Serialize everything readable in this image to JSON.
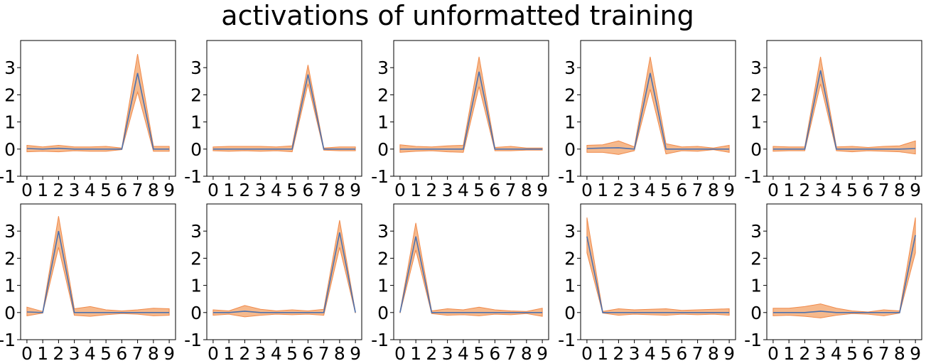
{
  "figure": {
    "title": "activations of unformatted training"
  },
  "colors": {
    "line": "#4c72b0",
    "band_fill": "#f6b98c",
    "band_edge": "#f08a4b",
    "axes": "#000000"
  },
  "chart_data": [
    {
      "type": "line",
      "title": "",
      "xlabel": "",
      "ylabel": "",
      "x": [
        0,
        1,
        2,
        3,
        4,
        5,
        6,
        7,
        8,
        9
      ],
      "xticks": [
        "0",
        "1",
        "2",
        "3",
        "4",
        "5",
        "6",
        "7",
        "8",
        "9"
      ],
      "yticks": [
        "-1",
        "0",
        "1",
        "2",
        "3"
      ],
      "ylim": [
        -1,
        4
      ],
      "legend": "none",
      "grid": false,
      "series": [
        {
          "values": [
            0.02,
            0.0,
            0.03,
            0.0,
            0.0,
            0.0,
            0.0,
            2.8,
            0.0,
            0.0
          ],
          "lower": [
            -0.1,
            -0.08,
            -0.1,
            -0.06,
            -0.08,
            -0.08,
            -0.02,
            2.1,
            -0.08,
            -0.08
          ],
          "upper": [
            0.14,
            0.08,
            0.14,
            0.08,
            0.08,
            0.1,
            0.04,
            3.5,
            0.1,
            0.1
          ]
        }
      ]
    },
    {
      "type": "line",
      "title": "",
      "xlabel": "",
      "ylabel": "",
      "x": [
        0,
        1,
        2,
        3,
        4,
        5,
        6,
        7,
        8,
        9
      ],
      "xticks": [
        "0",
        "1",
        "2",
        "3",
        "4",
        "5",
        "6",
        "7",
        "8",
        "9"
      ],
      "yticks": [
        "-1",
        "0",
        "1",
        "2",
        "3"
      ],
      "ylim": [
        -1,
        4
      ],
      "legend": "none",
      "grid": false,
      "series": [
        {
          "values": [
            0.0,
            0.0,
            0.0,
            0.0,
            0.0,
            0.0,
            2.75,
            0.0,
            0.0,
            0.0
          ],
          "lower": [
            -0.06,
            -0.08,
            -0.06,
            -0.08,
            -0.06,
            -0.1,
            2.4,
            -0.04,
            -0.06,
            -0.06
          ],
          "upper": [
            0.08,
            0.1,
            0.1,
            0.1,
            0.08,
            0.12,
            3.1,
            0.04,
            0.08,
            0.08
          ]
        }
      ]
    },
    {
      "type": "line",
      "title": "",
      "xlabel": "",
      "ylabel": "",
      "x": [
        0,
        1,
        2,
        3,
        4,
        5,
        6,
        7,
        8,
        9
      ],
      "xticks": [
        "0",
        "1",
        "2",
        "3",
        "4",
        "5",
        "6",
        "7",
        "8",
        "9"
      ],
      "yticks": [
        "-1",
        "0",
        "1",
        "2",
        "3"
      ],
      "ylim": [
        -1,
        4
      ],
      "legend": "none",
      "grid": false,
      "series": [
        {
          "values": [
            0.0,
            0.0,
            0.0,
            0.0,
            0.0,
            2.85,
            0.0,
            0.0,
            0.0,
            0.0
          ],
          "lower": [
            -0.12,
            -0.08,
            -0.06,
            -0.1,
            -0.12,
            2.3,
            -0.06,
            -0.06,
            -0.04,
            -0.04
          ],
          "upper": [
            0.16,
            0.1,
            0.08,
            0.12,
            0.14,
            3.4,
            0.06,
            0.1,
            0.04,
            0.04
          ]
        }
      ]
    },
    {
      "type": "line",
      "title": "",
      "xlabel": "",
      "ylabel": "",
      "x": [
        0,
        1,
        2,
        3,
        4,
        5,
        6,
        7,
        8,
        9
      ],
      "xticks": [
        "0",
        "1",
        "2",
        "3",
        "4",
        "5",
        "6",
        "7",
        "8",
        "9"
      ],
      "yticks": [
        "-1",
        "0",
        "1",
        "2",
        "3"
      ],
      "ylim": [
        -1,
        4
      ],
      "legend": "none",
      "grid": false,
      "series": [
        {
          "values": [
            0.02,
            0.04,
            0.05,
            0.0,
            2.8,
            0.0,
            0.0,
            0.0,
            0.0,
            0.0
          ],
          "lower": [
            -0.12,
            -0.12,
            -0.2,
            -0.06,
            2.2,
            -0.18,
            -0.06,
            -0.08,
            -0.02,
            -0.12
          ],
          "upper": [
            0.14,
            0.16,
            0.3,
            0.08,
            3.4,
            0.2,
            0.08,
            0.1,
            0.04,
            0.14
          ]
        }
      ]
    },
    {
      "type": "line",
      "title": "",
      "xlabel": "",
      "ylabel": "",
      "x": [
        0,
        1,
        2,
        3,
        4,
        5,
        6,
        7,
        8,
        9
      ],
      "xticks": [
        "0",
        "1",
        "2",
        "3",
        "4",
        "5",
        "6",
        "7",
        "8",
        "9"
      ],
      "yticks": [
        "-1",
        "0",
        "1",
        "2",
        "3"
      ],
      "ylim": [
        -1,
        4
      ],
      "legend": "none",
      "grid": false,
      "series": [
        {
          "values": [
            0.0,
            0.0,
            0.0,
            2.9,
            0.0,
            0.0,
            0.0,
            0.0,
            0.0,
            0.02
          ],
          "lower": [
            -0.08,
            -0.06,
            -0.06,
            2.4,
            -0.06,
            -0.1,
            -0.06,
            -0.08,
            -0.1,
            -0.18
          ],
          "upper": [
            0.1,
            0.08,
            0.08,
            3.4,
            0.08,
            0.1,
            0.06,
            0.1,
            0.12,
            0.3
          ]
        }
      ]
    },
    {
      "type": "line",
      "title": "",
      "xlabel": "",
      "ylabel": "",
      "x": [
        0,
        1,
        2,
        3,
        4,
        5,
        6,
        7,
        8,
        9
      ],
      "xticks": [
        "0",
        "1",
        "2",
        "3",
        "4",
        "5",
        "6",
        "7",
        "8",
        "9"
      ],
      "yticks": [
        "-1",
        "0",
        "1",
        "2",
        "3"
      ],
      "ylim": [
        -1,
        4
      ],
      "legend": "none",
      "grid": false,
      "series": [
        {
          "values": [
            0.02,
            0.0,
            3.0,
            0.0,
            0.0,
            0.0,
            0.0,
            0.0,
            0.0,
            0.0
          ],
          "lower": [
            -0.12,
            -0.02,
            2.4,
            -0.1,
            -0.14,
            -0.08,
            -0.04,
            -0.06,
            -0.12,
            -0.1
          ],
          "upper": [
            0.2,
            0.04,
            3.55,
            0.14,
            0.22,
            0.1,
            0.06,
            0.1,
            0.16,
            0.14
          ]
        }
      ]
    },
    {
      "type": "line",
      "title": "",
      "xlabel": "",
      "ylabel": "",
      "x": [
        0,
        1,
        2,
        3,
        4,
        5,
        6,
        7,
        8,
        9
      ],
      "xticks": [
        "0",
        "1",
        "2",
        "3",
        "4",
        "5",
        "6",
        "7",
        "8",
        "9"
      ],
      "yticks": [
        "-1",
        "0",
        "1",
        "2",
        "3"
      ],
      "ylim": [
        -1,
        4
      ],
      "legend": "none",
      "grid": false,
      "series": [
        {
          "values": [
            0.0,
            0.0,
            0.05,
            0.0,
            0.0,
            0.0,
            0.0,
            0.0,
            2.95,
            0.0
          ],
          "lower": [
            -0.1,
            -0.06,
            -0.16,
            -0.1,
            -0.06,
            -0.08,
            -0.06,
            -0.1,
            2.4,
            -0.02
          ],
          "upper": [
            0.1,
            0.06,
            0.26,
            0.12,
            0.06,
            0.1,
            0.06,
            0.12,
            3.4,
            0.02
          ]
        }
      ]
    },
    {
      "type": "line",
      "title": "",
      "xlabel": "",
      "ylabel": "",
      "x": [
        0,
        1,
        2,
        3,
        4,
        5,
        6,
        7,
        8,
        9
      ],
      "xticks": [
        "0",
        "1",
        "2",
        "3",
        "4",
        "5",
        "6",
        "7",
        "8",
        "9"
      ],
      "yticks": [
        "-1",
        "0",
        "1",
        "2",
        "3"
      ],
      "ylim": [
        -1,
        4
      ],
      "legend": "none",
      "grid": false,
      "series": [
        {
          "values": [
            0.0,
            2.8,
            0.0,
            0.0,
            0.0,
            0.0,
            0.0,
            0.0,
            0.0,
            0.0
          ],
          "lower": [
            -0.02,
            2.3,
            -0.04,
            -0.1,
            -0.08,
            -0.12,
            -0.06,
            -0.08,
            -0.04,
            -0.14
          ],
          "upper": [
            0.02,
            3.3,
            0.06,
            0.14,
            0.1,
            0.2,
            0.1,
            0.06,
            0.04,
            0.16
          ]
        }
      ]
    },
    {
      "type": "line",
      "title": "",
      "xlabel": "",
      "ylabel": "",
      "x": [
        0,
        1,
        2,
        3,
        4,
        5,
        6,
        7,
        8,
        9
      ],
      "xticks": [
        "0",
        "1",
        "2",
        "3",
        "4",
        "5",
        "6",
        "7",
        "8",
        "9"
      ],
      "yticks": [
        "-1",
        "0",
        "1",
        "2",
        "3"
      ],
      "ylim": [
        -1,
        4
      ],
      "legend": "none",
      "grid": false,
      "series": [
        {
          "values": [
            2.8,
            0.0,
            0.0,
            0.0,
            0.0,
            0.0,
            0.0,
            0.0,
            0.0,
            0.0
          ],
          "lower": [
            2.2,
            -0.02,
            -0.1,
            -0.06,
            -0.08,
            -0.1,
            -0.06,
            -0.08,
            -0.06,
            -0.1
          ],
          "upper": [
            3.5,
            0.04,
            0.14,
            0.1,
            0.12,
            0.14,
            0.08,
            0.1,
            0.12,
            0.14
          ]
        }
      ]
    },
    {
      "type": "line",
      "title": "",
      "xlabel": "",
      "ylabel": "",
      "x": [
        0,
        1,
        2,
        3,
        4,
        5,
        6,
        7,
        8,
        9
      ],
      "xticks": [
        "0",
        "1",
        "2",
        "3",
        "4",
        "5",
        "6",
        "7",
        "8",
        "9"
      ],
      "yticks": [
        "-1",
        "0",
        "1",
        "2",
        "3"
      ],
      "ylim": [
        -1,
        4
      ],
      "legend": "none",
      "grid": false,
      "series": [
        {
          "values": [
            0.0,
            0.0,
            0.0,
            0.05,
            0.0,
            0.0,
            0.0,
            0.0,
            0.0,
            2.85
          ],
          "lower": [
            -0.12,
            -0.1,
            -0.14,
            -0.2,
            -0.1,
            -0.04,
            -0.06,
            -0.12,
            -0.02,
            2.2
          ],
          "upper": [
            0.16,
            0.16,
            0.22,
            0.32,
            0.16,
            0.06,
            0.02,
            0.1,
            0.06,
            3.5
          ]
        }
      ]
    }
  ]
}
